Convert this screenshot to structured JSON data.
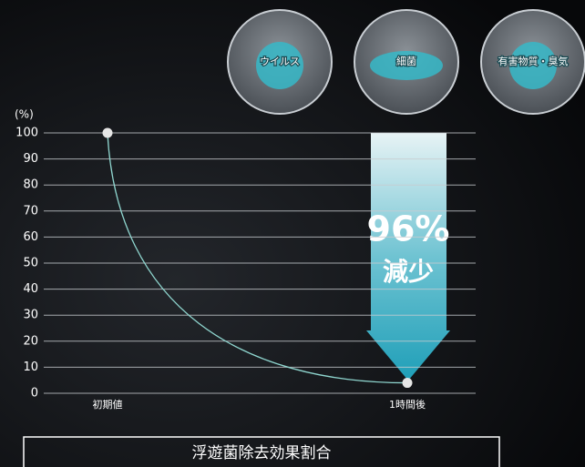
{
  "chart_data": {
    "type": "line",
    "unit_label": "(%)",
    "categories": [
      "初期値",
      "1時間後"
    ],
    "values": [
      100,
      4
    ],
    "color": "#8fd6cf",
    "ylim": [
      0,
      100
    ],
    "yticks": [
      0,
      10,
      20,
      30,
      40,
      50,
      60,
      70,
      80,
      90,
      100
    ],
    "grid": true,
    "annotations": [
      "96%",
      "減少"
    ],
    "badges": [
      "ウイルス",
      "細菌",
      "有害物質・臭気"
    ],
    "caption": "浮遊菌除去効果割合"
  }
}
